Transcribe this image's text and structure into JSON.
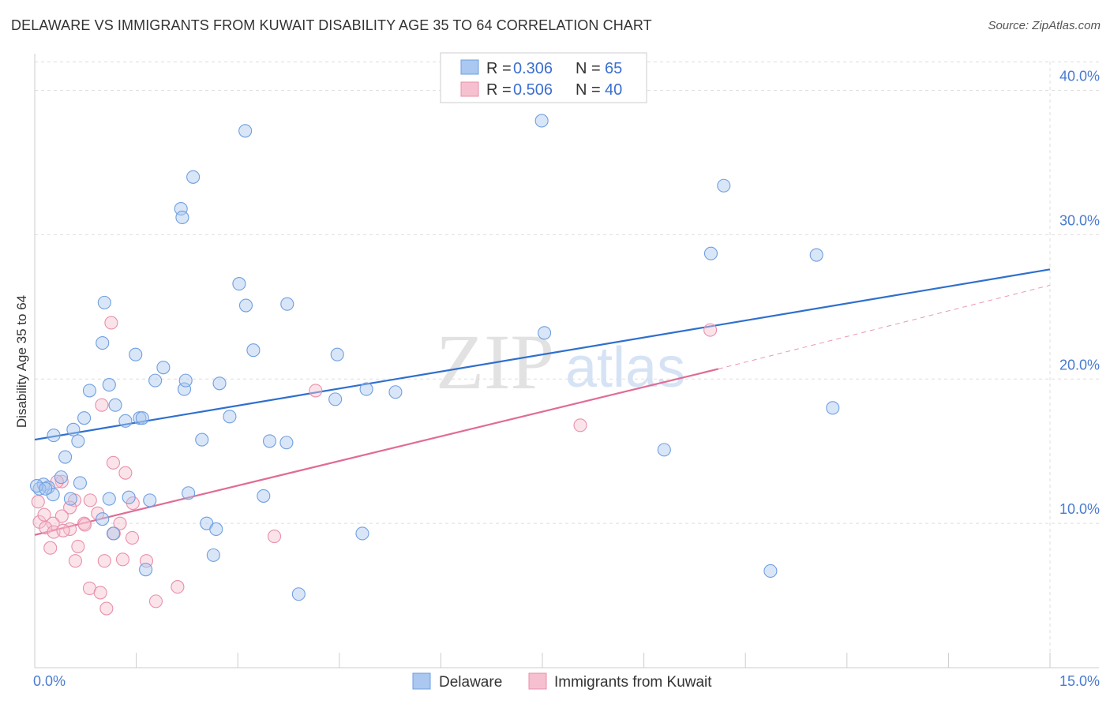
{
  "title": "DELAWARE VS IMMIGRANTS FROM KUWAIT DISABILITY AGE 35 TO 64 CORRELATION CHART",
  "source": "Source: ZipAtlas.com",
  "watermark": {
    "zip": "ZIP",
    "atlas": "atlas"
  },
  "colors": {
    "blue_fill": "#aac8f0",
    "blue_stroke": "#6f9fe0",
    "blue_line": "#2f6fce",
    "pink_fill": "#f6c0d0",
    "pink_stroke": "#e890aa",
    "pink_line": "#e06c96",
    "axis_text": "#4a7bd0",
    "grid": "#dddddd"
  },
  "legend": {
    "rows": [
      {
        "r_label": "R =",
        "r_value": "0.306",
        "n_label": "N =",
        "n_value": "65"
      },
      {
        "r_label": "R =",
        "r_value": "0.506",
        "n_label": "N =",
        "n_value": "40"
      }
    ]
  },
  "chart_data": {
    "type": "scatter",
    "title": "DELAWARE VS IMMIGRANTS FROM KUWAIT DISABILITY AGE 35 TO 64 CORRELATION CHART",
    "xlabel": "",
    "ylabel": "Disability Age 35 to 64",
    "xlim": [
      0,
      15
    ],
    "ylim": [
      0,
      42
    ],
    "x_tick_labels": [
      {
        "value": 0,
        "label": "0.0%"
      },
      {
        "value": 15,
        "label": "15.0%"
      }
    ],
    "y_tick_labels": [
      {
        "value": 10,
        "label": "10.0%"
      },
      {
        "value": 20,
        "label": "20.0%"
      },
      {
        "value": 30,
        "label": "30.0%"
      },
      {
        "value": 40,
        "label": "40.0%"
      }
    ],
    "x_minor_ticks": [
      0,
      1.5,
      3,
      4.5,
      6,
      7.5,
      9,
      10.5,
      12,
      13.5,
      15
    ],
    "series": [
      {
        "name": "Delaware",
        "color": "blue",
        "trend": {
          "x": [
            0,
            15
          ],
          "y": [
            15.8,
            27.6
          ]
        },
        "points": [
          [
            3.11,
            37.2
          ],
          [
            2.34,
            34.0
          ],
          [
            2.16,
            31.8
          ],
          [
            2.18,
            31.2
          ],
          [
            1.03,
            25.3
          ],
          [
            3.02,
            26.6
          ],
          [
            3.12,
            25.1
          ],
          [
            3.73,
            25.2
          ],
          [
            1.0,
            22.5
          ],
          [
            1.49,
            21.7
          ],
          [
            1.9,
            20.8
          ],
          [
            3.23,
            22.0
          ],
          [
            4.47,
            21.7
          ],
          [
            1.1,
            19.6
          ],
          [
            1.78,
            19.9
          ],
          [
            2.21,
            19.3
          ],
          [
            2.23,
            19.9
          ],
          [
            2.73,
            19.7
          ],
          [
            4.9,
            19.3
          ],
          [
            5.33,
            19.1
          ],
          [
            4.44,
            18.6
          ],
          [
            0.81,
            19.2
          ],
          [
            1.19,
            18.2
          ],
          [
            1.55,
            17.3
          ],
          [
            1.34,
            17.1
          ],
          [
            1.59,
            17.3
          ],
          [
            0.73,
            17.3
          ],
          [
            2.88,
            17.4
          ],
          [
            0.57,
            16.5
          ],
          [
            0.28,
            16.1
          ],
          [
            0.64,
            15.7
          ],
          [
            2.47,
            15.8
          ],
          [
            3.47,
            15.7
          ],
          [
            3.72,
            15.6
          ],
          [
            0.45,
            14.6
          ],
          [
            0.39,
            13.2
          ],
          [
            0.67,
            12.8
          ],
          [
            0.13,
            12.7
          ],
          [
            0.2,
            12.5
          ],
          [
            0.07,
            12.4
          ],
          [
            0.27,
            12.0
          ],
          [
            0.53,
            11.7
          ],
          [
            1.1,
            11.7
          ],
          [
            1.39,
            11.8
          ],
          [
            1.7,
            11.6
          ],
          [
            2.27,
            12.1
          ],
          [
            3.38,
            11.9
          ],
          [
            1.0,
            10.3
          ],
          [
            2.54,
            10.0
          ],
          [
            2.68,
            9.6
          ],
          [
            1.16,
            9.3
          ],
          [
            4.84,
            9.3
          ],
          [
            1.64,
            6.8
          ],
          [
            2.64,
            7.8
          ],
          [
            3.9,
            5.1
          ],
          [
            7.49,
            37.9
          ],
          [
            10.18,
            33.4
          ],
          [
            9.99,
            28.7
          ],
          [
            11.55,
            28.6
          ],
          [
            7.53,
            23.2
          ],
          [
            11.79,
            18.0
          ],
          [
            9.3,
            15.1
          ],
          [
            10.87,
            6.7
          ],
          [
            0.03,
            12.6
          ],
          [
            0.16,
            12.4
          ]
        ]
      },
      {
        "name": "Immigrants from Kuwait",
        "color": "pink",
        "trend": {
          "x": [
            0,
            10.1
          ],
          "y": [
            9.2,
            20.7
          ]
        },
        "trend_extension": {
          "x": [
            10.1,
            15
          ],
          "y": [
            20.7,
            26.5
          ]
        },
        "points": [
          [
            1.13,
            23.9
          ],
          [
            0.99,
            18.2
          ],
          [
            4.15,
            19.2
          ],
          [
            9.98,
            23.4
          ],
          [
            8.06,
            16.8
          ],
          [
            1.16,
            14.2
          ],
          [
            1.34,
            13.5
          ],
          [
            0.4,
            12.9
          ],
          [
            0.59,
            11.6
          ],
          [
            0.82,
            11.6
          ],
          [
            1.45,
            11.4
          ],
          [
            0.52,
            11.1
          ],
          [
            0.93,
            10.7
          ],
          [
            0.4,
            10.5
          ],
          [
            0.07,
            10.1
          ],
          [
            0.27,
            10.0
          ],
          [
            0.73,
            10.0
          ],
          [
            1.26,
            10.0
          ],
          [
            0.16,
            9.7
          ],
          [
            0.28,
            9.4
          ],
          [
            0.52,
            9.6
          ],
          [
            0.74,
            9.9
          ],
          [
            1.17,
            9.3
          ],
          [
            1.44,
            9.0
          ],
          [
            3.54,
            9.1
          ],
          [
            0.23,
            8.3
          ],
          [
            0.64,
            8.4
          ],
          [
            0.6,
            7.4
          ],
          [
            1.03,
            7.4
          ],
          [
            1.3,
            7.5
          ],
          [
            1.65,
            7.4
          ],
          [
            0.81,
            5.5
          ],
          [
            0.97,
            5.2
          ],
          [
            1.06,
            4.1
          ],
          [
            1.79,
            4.6
          ],
          [
            2.11,
            5.6
          ],
          [
            0.05,
            11.5
          ],
          [
            0.33,
            12.9
          ],
          [
            0.14,
            10.6
          ],
          [
            0.42,
            9.5
          ]
        ]
      }
    ]
  },
  "bottom_legend": [
    {
      "label": "Delaware",
      "color": "blue"
    },
    {
      "label": "Immigrants from Kuwait",
      "color": "pink"
    }
  ]
}
